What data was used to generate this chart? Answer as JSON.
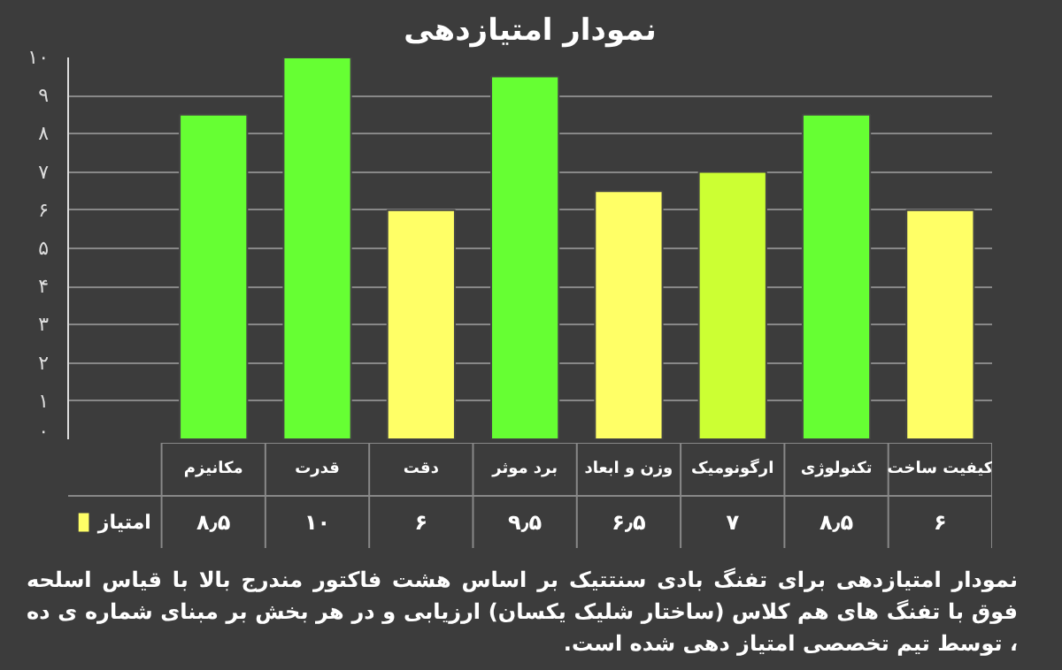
{
  "chart_data": {
    "type": "bar",
    "title": "نمودار امتیازدهی",
    "categories": [
      "مکانیزم",
      "قدرت",
      "دقت",
      "برد موثر",
      "وزن و ابعاد",
      "ارگونومیک",
      "تکنولوژی",
      "کیفیت ساخت"
    ],
    "series": [
      {
        "name": "امتیاز",
        "color": "#ffff66",
        "colors": [
          "#66ff33",
          "#66ff33",
          "#ffff66",
          "#66ff33",
          "#ffff66",
          "#ccff33",
          "#66ff33",
          "#ffff66"
        ],
        "values": [
          8.5,
          10,
          6,
          9.5,
          6.5,
          7,
          8.5,
          6
        ],
        "value_labels": [
          "۸٫۵",
          "۱۰",
          "۶",
          "۹٫۵",
          "۶٫۵",
          "۷",
          "۸٫۵",
          "۶"
        ]
      }
    ],
    "ylim": [
      0,
      10
    ],
    "yticks": [
      {
        "value": 0,
        "label": "۰"
      },
      {
        "value": 1,
        "label": "۱"
      },
      {
        "value": 2,
        "label": "۲"
      },
      {
        "value": 3,
        "label": "۳"
      },
      {
        "value": 4,
        "label": "۴"
      },
      {
        "value": 5,
        "label": "۵"
      },
      {
        "value": 6,
        "label": "۶"
      },
      {
        "value": 7,
        "label": "۷"
      },
      {
        "value": 8,
        "label": "۸"
      },
      {
        "value": 9,
        "label": "۹"
      },
      {
        "value": 10,
        "label": "۱۰"
      }
    ],
    "grid": "y",
    "legend": "bottom left",
    "annotations": [
      "نمودار امتیازدهی برای تفنگ بادی سنتتیک بر اساس هشت فاکتور مندرج بالا با قیاس اسلحه فوق با تفنگ های هم کلاس (ساختار شلیک یکسان) ارزیابی و در هر بخش بر مبنای شماره ی ده ، توسط تیم تخصصی امتیاز دهی شده است."
    ]
  }
}
